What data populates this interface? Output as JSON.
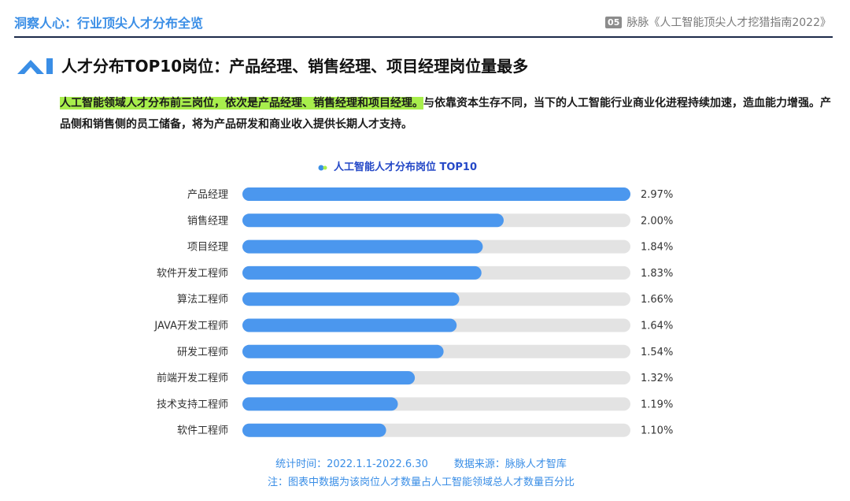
{
  "header": {
    "left_title": "洞察人心：行业顶尖人才分布全览",
    "page_number": "05",
    "report_title": "脉脉《人工智能顶尖人才挖猎指南2022》"
  },
  "section": {
    "title": "人才分布TOP10岗位：产品经理、销售经理、项目经理岗位量最多",
    "highlight_text": "人工智能领域人才分布前三岗位，依次是产品经理、销售经理和项目经理。",
    "body_text": "与依靠资本生存不同，当下的人工智能行业商业化进程持续加速，造血能力增强。产品侧和销售侧的员工储备，将为产品研发和商业收入提供长期人才支持。"
  },
  "colors": {
    "bar_fill": "#4b97ee",
    "bar_track": "#e3e3e3",
    "header_accent": "#3a8ee6",
    "highlight": "#a8ee4c",
    "chart_title": "#2448c7"
  },
  "chart_data": {
    "type": "bar",
    "orientation": "horizontal",
    "title": "人工智能人才分布岗位 TOP10",
    "categories": [
      "产品经理",
      "销售经理",
      "项目经理",
      "软件开发工程师",
      "算法工程师",
      "JAVA开发工程师",
      "研发工程师",
      "前端开发工程师",
      "技术支持工程师",
      "软件工程师"
    ],
    "values": [
      2.97,
      2.0,
      1.84,
      1.83,
      1.66,
      1.64,
      1.54,
      1.32,
      1.19,
      1.1
    ],
    "value_labels": [
      "2.97%",
      "2.00%",
      "1.84%",
      "1.83%",
      "1.66%",
      "1.64%",
      "1.54%",
      "1.32%",
      "1.19%",
      "1.10%"
    ],
    "xlim": [
      0,
      2.97
    ],
    "unit": "%",
    "grid": false,
    "legend": "none"
  },
  "footnotes": {
    "line1": "统计时间：2022.1.1-2022.6.30        数据来源：脉脉人才智库",
    "line2": "注：图表中数据为该岗位人才数量占人工智能领域总人才数量百分比"
  }
}
